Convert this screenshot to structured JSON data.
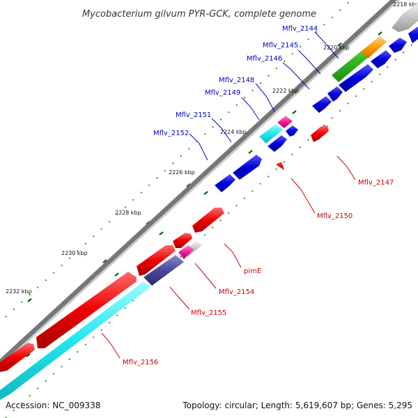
{
  "title": "Mycobacterium gilvum PYR-GCK, complete genome",
  "footer": {
    "accession": "Accession: NC_009338",
    "summary": "Topology: circular; Length: 5,619,607 bp; Genes: 5,295"
  },
  "colors": {
    "forward_label": "#0000cc",
    "reverse_label": "#cc0000",
    "forward_gene": "#0000dd",
    "reverse_gene": "#ee0000",
    "tick": "#006600",
    "backbone_dark": "#777777",
    "backbone_light": "#cccccc"
  },
  "kbp_labels": [
    "2218 kbp",
    "2220 kbp",
    "2222 kbp",
    "2224 kbp",
    "2226 kbp",
    "2228 kbp",
    "2230 kbp",
    "2232 kbp"
  ],
  "forward_labels": [
    "Mflv_2144",
    "Mflv_2145",
    "Mflv_2146",
    "Mflv_2148",
    "Mflv_2149",
    "Mflv_2151",
    "Mflv_2152"
  ],
  "reverse_labels": [
    "Mflv_2147",
    "Mflv_2150",
    "pimE",
    "Mflv_2154",
    "Mflv_2155",
    "Mflv_2156"
  ]
}
